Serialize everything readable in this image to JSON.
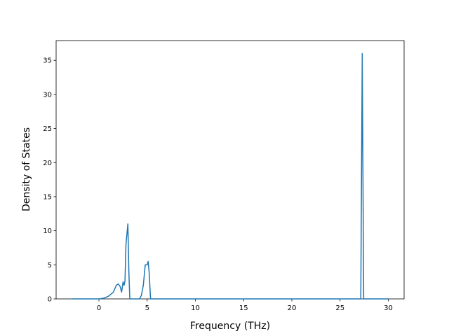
{
  "chart_data": {
    "type": "line",
    "xlabel": "Frequency (THz)",
    "ylabel": "Density of States",
    "x": [
      -2.8,
      0,
      0.5,
      1,
      1.5,
      1.8,
      2.0,
      2.2,
      2.35,
      2.5,
      2.6,
      2.7,
      2.8,
      3.0,
      3.1,
      3.2,
      4.2,
      4.4,
      4.6,
      4.8,
      5.0,
      5.1,
      5.2,
      5.35,
      27.0,
      27.15,
      27.3,
      27.45,
      30
    ],
    "series": [
      {
        "color": "#1f77b4",
        "values": [
          0,
          0,
          0.1,
          0.4,
          1.0,
          2.0,
          2.2,
          1.8,
          1.0,
          2.5,
          2.0,
          2.6,
          8,
          11,
          4,
          0,
          0,
          0.5,
          2,
          5,
          5,
          5.5,
          4,
          0,
          0,
          0,
          36,
          0,
          0
        ]
      }
    ],
    "xlim": [
      -4.44,
      31.64
    ],
    "ylim": [
      0,
      37.9
    ],
    "xticks": [
      0,
      5,
      10,
      15,
      20,
      25,
      30
    ],
    "yticks": [
      0,
      5,
      10,
      15,
      20,
      25,
      30,
      35
    ]
  }
}
